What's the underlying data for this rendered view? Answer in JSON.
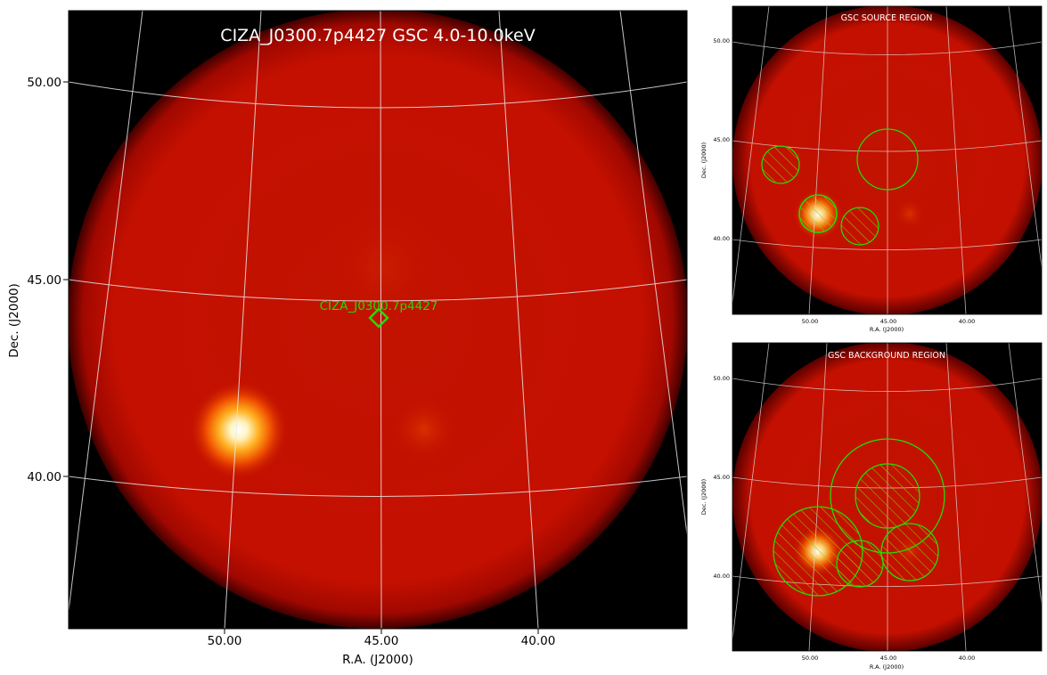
{
  "main": {
    "title": "CIZA_J0300.7p4427 GSC 4.0-10.0keV",
    "xlabel": "R.A. (J2000)",
    "ylabel": "Dec. (J2000)",
    "xticks": [
      "50.00",
      "45.00",
      "40.00"
    ],
    "yticks": [
      "50.00",
      "45.00",
      "40.00"
    ],
    "marker_label": "CIZA_J0300.7p4427",
    "marker_color": "#22dd00"
  },
  "source_panel": {
    "title": "GSC SOURCE REGION",
    "xlabel": "R.A. (J2000)",
    "ylabel": "Dec. (J2000)",
    "xticks": [
      "50.00",
      "45.00",
      "40.00"
    ],
    "yticks": [
      "50.00",
      "45.00",
      "40.00"
    ]
  },
  "background_panel": {
    "title": "GSC BACKGROUND REGION",
    "xlabel": "R.A. (J2000)",
    "ylabel": "Dec. (J2000)",
    "xticks": [
      "50.00",
      "45.00",
      "40.00"
    ],
    "yticks": [
      "50.00",
      "45.00",
      "40.00"
    ]
  },
  "colors": {
    "region": "#22dd00",
    "disk": "#c41000",
    "background": "#000000",
    "grid": "#e8e8e8"
  }
}
